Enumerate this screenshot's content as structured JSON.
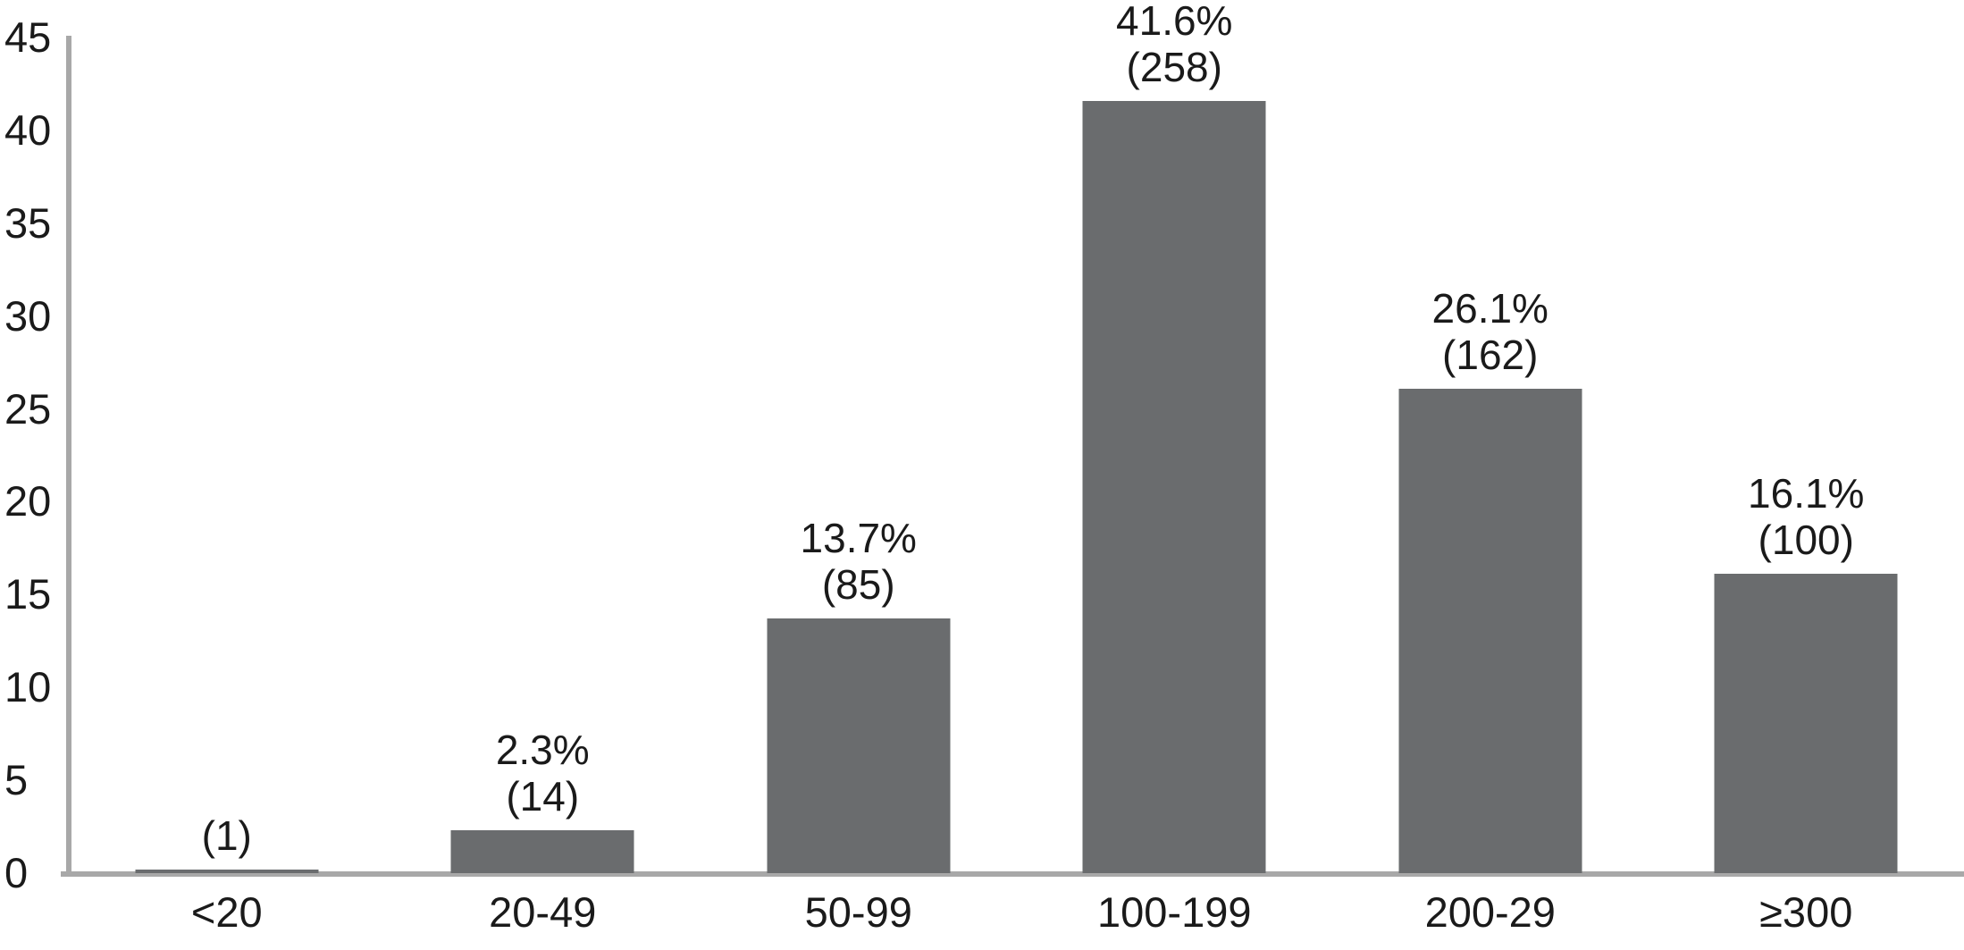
{
  "chart_data": {
    "type": "bar",
    "title": "",
    "xlabel": "",
    "ylabel": "",
    "categories": [
      "<20",
      "20-49",
      "50-99",
      "100-199",
      "200-29",
      "≥300"
    ],
    "values": [
      0.2,
      2.3,
      13.7,
      41.6,
      26.1,
      16.1
    ],
    "counts": [
      1,
      14,
      85,
      258,
      162,
      100
    ],
    "bar_labels": [
      {
        "pct": "",
        "count": "(1)"
      },
      {
        "pct": "2.3%",
        "count": "(14)"
      },
      {
        "pct": "13.7%",
        "count": "(85)"
      },
      {
        "pct": "41.6%",
        "count": "(258)"
      },
      {
        "pct": "26.1%",
        "count": "(162)"
      },
      {
        "pct": "16.1%",
        "count": "(100)"
      }
    ],
    "ylim": [
      0,
      45
    ],
    "yticks": [
      0,
      5,
      10,
      15,
      20,
      25,
      30,
      35,
      40,
      45
    ],
    "grid": false,
    "legend_position": "none",
    "bar_color": "#6a6c6e",
    "axis_color": "#a8a8a8",
    "text_color": "#1a1a1a",
    "background_color": "#ffffff"
  }
}
